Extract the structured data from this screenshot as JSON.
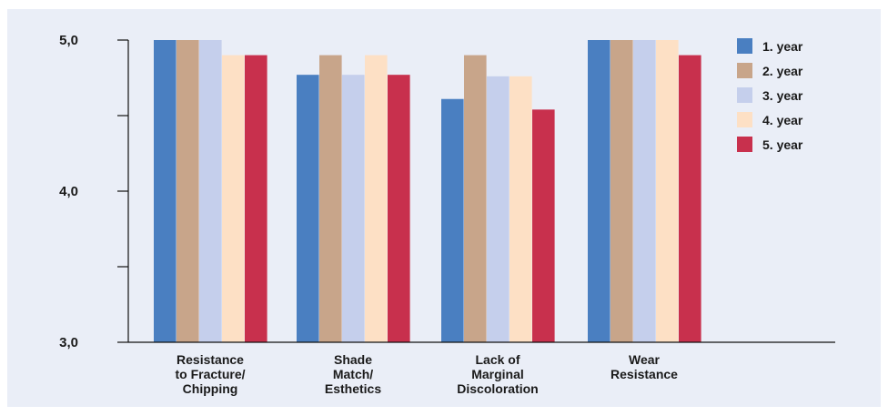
{
  "chart_data": {
    "type": "bar",
    "categories": [
      [
        "Resistance",
        "to Fracture/",
        "Chipping"
      ],
      [
        "Shade",
        "Match/",
        "Esthetics"
      ],
      [
        "Lack of",
        "Marginal",
        "Discoloration"
      ],
      [
        "Wear",
        "Resistance"
      ]
    ],
    "series": [
      {
        "name": "1. year",
        "color": "#4a7fc1",
        "values": [
          5.0,
          4.77,
          4.61,
          5.0
        ]
      },
      {
        "name": "2. year",
        "color": "#c8a58a",
        "values": [
          5.0,
          4.9,
          4.9,
          5.0
        ]
      },
      {
        "name": "3. year",
        "color": "#c5cfec",
        "values": [
          5.0,
          4.77,
          4.76,
          5.0
        ]
      },
      {
        "name": "4. year",
        "color": "#fde0c5",
        "values": [
          4.9,
          4.9,
          4.76,
          5.0
        ]
      },
      {
        "name": "5. year",
        "color": "#c8304d",
        "values": [
          4.9,
          4.77,
          4.54,
          4.9
        ]
      }
    ],
    "ylim": [
      3.0,
      5.0
    ],
    "ytick_values": [
      3.0,
      3.5,
      4.0,
      4.5,
      5.0
    ],
    "ytick_labels": [
      "3,0",
      "",
      "4,0",
      "",
      "5,0"
    ],
    "legend_position": "top-right",
    "grid": false
  }
}
